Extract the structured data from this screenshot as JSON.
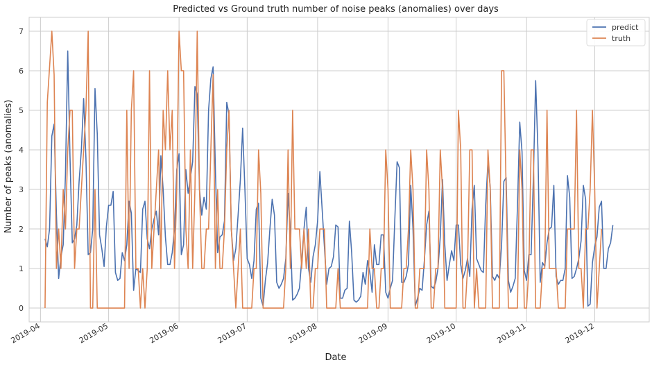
{
  "chart_data": {
    "type": "line",
    "title": "Predicted vs Ground truth number of noise peaks (anomalies) over days",
    "xlabel": "Date",
    "ylabel": "Number of peaks (anomalies)",
    "xlim": [
      "2019-03-27",
      "2019-12-25"
    ],
    "ylim": [
      -0.35,
      7.35
    ],
    "yticks": [
      0,
      1,
      2,
      3,
      4,
      5,
      6,
      7
    ],
    "xticks": [
      {
        "date": "2019-04-01",
        "label": "2019-04"
      },
      {
        "date": "2019-05-01",
        "label": "2019-05"
      },
      {
        "date": "2019-06-01",
        "label": "2019-06"
      },
      {
        "date": "2019-07-01",
        "label": "2019-07"
      },
      {
        "date": "2019-08-01",
        "label": "2019-08"
      },
      {
        "date": "2019-09-01",
        "label": "2019-09"
      },
      {
        "date": "2019-10-01",
        "label": "2019-10"
      },
      {
        "date": "2019-11-01",
        "label": "2019-11"
      },
      {
        "date": "2019-12-01",
        "label": "2019-12"
      }
    ],
    "grid": true,
    "legend_position": "top-right",
    "start_date": "2019-04-03",
    "series": [
      {
        "name": "predict",
        "color": "#4c72b0",
        "values": [
          1.75,
          1.55,
          2.0,
          4.35,
          4.65,
          2.4,
          0.75,
          1.3,
          1.6,
          3.4,
          6.5,
          3.8,
          1.65,
          1.75,
          2.1,
          3.2,
          4.0,
          5.3,
          3.8,
          1.35,
          1.4,
          2.0,
          5.55,
          4.4,
          1.85,
          1.5,
          1.05,
          2.05,
          2.6,
          2.6,
          2.95,
          0.9,
          0.7,
          0.75,
          1.4,
          1.2,
          1.6,
          2.7,
          2.4,
          0.45,
          1.0,
          0.95,
          0.9,
          2.5,
          2.7,
          1.75,
          1.5,
          2.0,
          2.25,
          2.45,
          1.85,
          3.85,
          3.0,
          1.8,
          1.1,
          1.1,
          1.4,
          2.0,
          3.5,
          3.9,
          1.35,
          1.6,
          3.5,
          2.9,
          3.3,
          3.7,
          5.6,
          5.4,
          3.0,
          2.35,
          2.8,
          2.5,
          5.0,
          5.8,
          6.1,
          3.5,
          1.4,
          1.8,
          1.85,
          2.2,
          5.2,
          4.9,
          2.0,
          1.2,
          1.5,
          2.35,
          3.25,
          4.55,
          3.0,
          1.25,
          1.1,
          0.75,
          1.2,
          2.5,
          2.65,
          0.25,
          0.05,
          0.7,
          1.15,
          2.0,
          2.75,
          2.35,
          0.65,
          0.5,
          0.6,
          0.75,
          1.25,
          2.9,
          1.9,
          0.2,
          0.25,
          0.35,
          0.5,
          1.2,
          2.0,
          2.55,
          1.0,
          0.65,
          1.3,
          1.6,
          2.2,
          3.45,
          2.5,
          1.55,
          0.6,
          1.0,
          1.05,
          1.3,
          2.1,
          2.05,
          0.25,
          0.25,
          0.45,
          0.5,
          2.2,
          1.4,
          0.2,
          0.15,
          0.2,
          0.3,
          0.9,
          0.6,
          1.2,
          0.9,
          0.4,
          1.6,
          1.1,
          1.1,
          1.85,
          1.85,
          0.4,
          0.25,
          0.5,
          0.7,
          2.25,
          3.7,
          3.55,
          0.65,
          0.65,
          0.8,
          1.1,
          3.1,
          2.0,
          0.05,
          0.25,
          0.5,
          0.45,
          1.2,
          2.1,
          2.45,
          0.55,
          0.5,
          0.65,
          1.0,
          1.8,
          3.25,
          1.6,
          0.7,
          1.1,
          1.45,
          1.2,
          2.1,
          2.1,
          1.1,
          0.75,
          0.95,
          1.25,
          0.8,
          2.5,
          3.1,
          1.25,
          1.1,
          0.95,
          0.9,
          2.6,
          3.7,
          3.05,
          0.8,
          0.7,
          0.85,
          0.75,
          1.6,
          3.2,
          3.3,
          0.7,
          0.4,
          0.55,
          0.75,
          2.6,
          4.7,
          3.95,
          0.95,
          0.7,
          1.35,
          1.35,
          3.3,
          5.75,
          4.0,
          0.65,
          1.15,
          1.05,
          1.65,
          2.0,
          2.05,
          3.1,
          0.8,
          0.6,
          0.7,
          0.7,
          1.0,
          3.35,
          2.8,
          0.75,
          0.8,
          1.0,
          1.25,
          1.7,
          3.1,
          2.75,
          0.05,
          0.1,
          1.15,
          1.55,
          1.8,
          2.55,
          2.7,
          1.0,
          1.0,
          1.5,
          1.65,
          2.1
        ]
      },
      {
        "name": "truth",
        "color": "#dd8452",
        "values": [
          0,
          5.2,
          6.1,
          7.0,
          5.9,
          1.0,
          2.0,
          1.0,
          3.0,
          2.0,
          4.0,
          5.0,
          5.0,
          1.0,
          2.0,
          2.0,
          3.0,
          4.0,
          5.0,
          7.0,
          0,
          0,
          3.0,
          0,
          0,
          0,
          0,
          0,
          0,
          0,
          0,
          0,
          0,
          0,
          0,
          0,
          5.0,
          1.0,
          5.0,
          6.0,
          1.0,
          1.0,
          0,
          1.0,
          0,
          1.0,
          6.0,
          1.0,
          2.0,
          3.0,
          4.0,
          1.0,
          5.0,
          4.0,
          6.0,
          4.0,
          5.0,
          1.0,
          3.0,
          7.0,
          6.0,
          6.0,
          2.0,
          1.0,
          4.0,
          1.0,
          3.0,
          7.0,
          3.0,
          1.0,
          1.0,
          2.0,
          2.0,
          4.0,
          5.9,
          1.0,
          3.0,
          1.0,
          1.0,
          2.0,
          4.0,
          5.0,
          2.0,
          1.0,
          0,
          1.0,
          2.0,
          0,
          0,
          0,
          0,
          0,
          1.0,
          1.0,
          4.0,
          2.9,
          0,
          0,
          0,
          0,
          0,
          0,
          0,
          0,
          0,
          0,
          1.0,
          4.0,
          1.0,
          5.0,
          2.0,
          2.0,
          2.0,
          1.0,
          2.0,
          1.0,
          2.0,
          0,
          0,
          1.0,
          1.0,
          2.0,
          2.0,
          2.0,
          0,
          0,
          0,
          0,
          0,
          1.0,
          0,
          0,
          0,
          0,
          0,
          0,
          0,
          0,
          0,
          0,
          0,
          0,
          0,
          2.0,
          1.0,
          1.0,
          0,
          0,
          1.0,
          1.0,
          4.0,
          3.0,
          0,
          0,
          0,
          0,
          0,
          0,
          1.0,
          1.0,
          2.0,
          4.0,
          3.0,
          0,
          0,
          1.0,
          1.0,
          1.0,
          4.0,
          3.0,
          0,
          0,
          1.0,
          1.0,
          4.0,
          3.0,
          0,
          0,
          0,
          0,
          0,
          0,
          5.0,
          4.0,
          0,
          0,
          1.0,
          4.0,
          4.0,
          0,
          1.0,
          0,
          0,
          0,
          0,
          4.0,
          3.0,
          0,
          0,
          0,
          0,
          6.0,
          6.0,
          3.0,
          0,
          0,
          0,
          0,
          0,
          4.0,
          3.0,
          0,
          0,
          1.0,
          4.0,
          4.0,
          0,
          0,
          0,
          1.0,
          1.0,
          5.0,
          1.0,
          1.0,
          1.0,
          1.0,
          0,
          0,
          0,
          0,
          2.0,
          2.0,
          2.0,
          2.0,
          5.0,
          1.0,
          1.0,
          0,
          2.0,
          2.0,
          3.0,
          5.0,
          3.0,
          0,
          1.0,
          2.0
        ]
      }
    ]
  }
}
